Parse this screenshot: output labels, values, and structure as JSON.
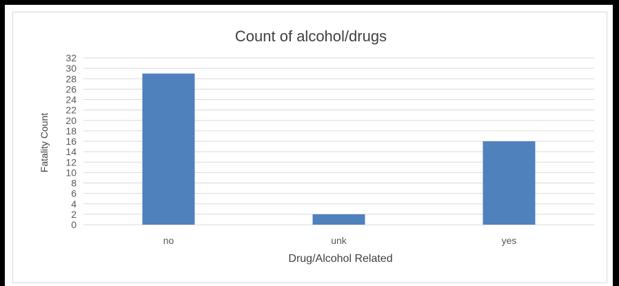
{
  "chart_data": {
    "type": "bar",
    "title": "Count of alcohol/drugs",
    "xlabel": "Drug/Alcohol Related",
    "ylabel": "Fatality Count",
    "categories": [
      "no",
      "unk",
      "yes"
    ],
    "values": [
      29,
      2,
      16
    ],
    "ylim": [
      0,
      32
    ],
    "ytick_step": 2,
    "grid": true,
    "legend": "none",
    "colors": {
      "bar": "#4f81bd",
      "grid": "#d9d9d9",
      "text": "#595959",
      "title": "#404040"
    }
  }
}
